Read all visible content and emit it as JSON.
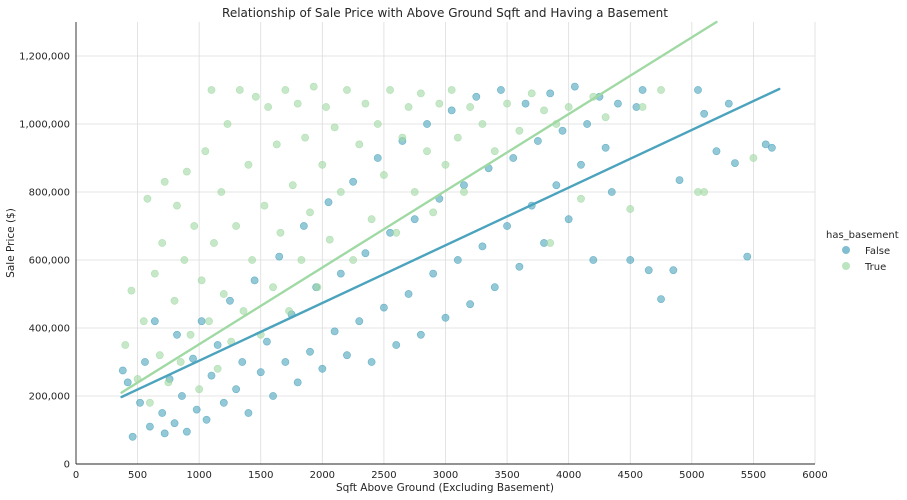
{
  "chart_data": {
    "type": "scatter",
    "title": "Relationship of Sale Price with Above Ground Sqft and Having a Basement",
    "xlabel": "Sqft Above Ground (Excluding Basement)",
    "ylabel": "Sale Price ($)",
    "xlim": [
      0,
      6000
    ],
    "ylim": [
      0,
      1300000
    ],
    "x_ticks": [
      0,
      500,
      1000,
      1500,
      2000,
      2500,
      3000,
      3500,
      4000,
      4500,
      5000,
      5500,
      6000
    ],
    "y_ticks": [
      0,
      200000,
      400000,
      600000,
      800000,
      1000000,
      1200000
    ],
    "x_tick_labels": [
      "0",
      "500",
      "1000",
      "1500",
      "2000",
      "2500",
      "3000",
      "3500",
      "4000",
      "4500",
      "5000",
      "5500",
      "6000"
    ],
    "y_tick_labels": [
      "0",
      "200,000",
      "400,000",
      "600,000",
      "800,000",
      "1,000,000",
      "1,200,000"
    ],
    "grid": true,
    "legend": {
      "title": "has_basement",
      "placement": "right"
    },
    "series": [
      {
        "name": "False",
        "color": "#4ba3bd",
        "regression_line": {
          "x": [
            370,
            5710
          ],
          "y": [
            197000,
            1103000
          ]
        },
        "points": [
          [
            380,
            275000
          ],
          [
            420,
            240000
          ],
          [
            460,
            80000
          ],
          [
            520,
            180000
          ],
          [
            560,
            300000
          ],
          [
            600,
            110000
          ],
          [
            640,
            420000
          ],
          [
            700,
            150000
          ],
          [
            720,
            90000
          ],
          [
            760,
            250000
          ],
          [
            800,
            120000
          ],
          [
            820,
            380000
          ],
          [
            860,
            200000
          ],
          [
            900,
            95000
          ],
          [
            950,
            310000
          ],
          [
            980,
            160000
          ],
          [
            1020,
            420000
          ],
          [
            1060,
            130000
          ],
          [
            1100,
            260000
          ],
          [
            1150,
            350000
          ],
          [
            1200,
            180000
          ],
          [
            1250,
            480000
          ],
          [
            1300,
            220000
          ],
          [
            1350,
            300000
          ],
          [
            1400,
            150000
          ],
          [
            1450,
            540000
          ],
          [
            1500,
            270000
          ],
          [
            1550,
            360000
          ],
          [
            1600,
            200000
          ],
          [
            1650,
            610000
          ],
          [
            1700,
            300000
          ],
          [
            1750,
            440000
          ],
          [
            1800,
            240000
          ],
          [
            1850,
            700000
          ],
          [
            1900,
            330000
          ],
          [
            1950,
            520000
          ],
          [
            2000,
            280000
          ],
          [
            2050,
            770000
          ],
          [
            2100,
            390000
          ],
          [
            2150,
            560000
          ],
          [
            2200,
            320000
          ],
          [
            2250,
            830000
          ],
          [
            2300,
            420000
          ],
          [
            2350,
            620000
          ],
          [
            2400,
            300000
          ],
          [
            2450,
            900000
          ],
          [
            2500,
            460000
          ],
          [
            2550,
            680000
          ],
          [
            2600,
            350000
          ],
          [
            2650,
            950000
          ],
          [
            2700,
            500000
          ],
          [
            2750,
            720000
          ],
          [
            2800,
            380000
          ],
          [
            2850,
            1000000
          ],
          [
            2900,
            560000
          ],
          [
            2950,
            780000
          ],
          [
            3000,
            430000
          ],
          [
            3050,
            1040000
          ],
          [
            3100,
            600000
          ],
          [
            3150,
            820000
          ],
          [
            3200,
            470000
          ],
          [
            3250,
            1080000
          ],
          [
            3300,
            640000
          ],
          [
            3350,
            870000
          ],
          [
            3400,
            520000
          ],
          [
            3450,
            1100000
          ],
          [
            3500,
            700000
          ],
          [
            3550,
            900000
          ],
          [
            3600,
            580000
          ],
          [
            3650,
            1060000
          ],
          [
            3700,
            760000
          ],
          [
            3750,
            950000
          ],
          [
            3800,
            650000
          ],
          [
            3850,
            1090000
          ],
          [
            3900,
            820000
          ],
          [
            3950,
            980000
          ],
          [
            4000,
            720000
          ],
          [
            4050,
            1110000
          ],
          [
            4100,
            880000
          ],
          [
            4150,
            1000000
          ],
          [
            4200,
            600000
          ],
          [
            4250,
            1080000
          ],
          [
            4300,
            930000
          ],
          [
            4350,
            800000
          ],
          [
            4400,
            1060000
          ],
          [
            4500,
            600000
          ],
          [
            4550,
            1050000
          ],
          [
            4600,
            1100000
          ],
          [
            4650,
            570000
          ],
          [
            4750,
            485000
          ],
          [
            4850,
            570000
          ],
          [
            4900,
            835000
          ],
          [
            5050,
            1100000
          ],
          [
            5100,
            1030000
          ],
          [
            5200,
            920000
          ],
          [
            5300,
            1060000
          ],
          [
            5350,
            885000
          ],
          [
            5450,
            610000
          ],
          [
            5600,
            940000
          ],
          [
            5650,
            930000
          ]
        ]
      },
      {
        "name": "True",
        "color": "#a0d9a3",
        "regression_line": {
          "x": [
            370,
            5200
          ],
          "y": [
            210000,
            1300000
          ]
        },
        "points": [
          [
            400,
            350000
          ],
          [
            450,
            510000
          ],
          [
            500,
            250000
          ],
          [
            550,
            420000
          ],
          [
            580,
            780000
          ],
          [
            600,
            180000
          ],
          [
            640,
            560000
          ],
          [
            680,
            320000
          ],
          [
            700,
            650000
          ],
          [
            720,
            830000
          ],
          [
            750,
            240000
          ],
          [
            800,
            480000
          ],
          [
            820,
            760000
          ],
          [
            850,
            300000
          ],
          [
            880,
            600000
          ],
          [
            900,
            860000
          ],
          [
            930,
            380000
          ],
          [
            960,
            700000
          ],
          [
            1000,
            220000
          ],
          [
            1020,
            540000
          ],
          [
            1050,
            920000
          ],
          [
            1080,
            420000
          ],
          [
            1100,
            1100000
          ],
          [
            1120,
            650000
          ],
          [
            1150,
            280000
          ],
          [
            1180,
            800000
          ],
          [
            1200,
            500000
          ],
          [
            1230,
            1000000
          ],
          [
            1260,
            360000
          ],
          [
            1300,
            700000
          ],
          [
            1330,
            1100000
          ],
          [
            1360,
            450000
          ],
          [
            1400,
            880000
          ],
          [
            1430,
            600000
          ],
          [
            1460,
            1080000
          ],
          [
            1500,
            380000
          ],
          [
            1530,
            760000
          ],
          [
            1560,
            1050000
          ],
          [
            1600,
            520000
          ],
          [
            1630,
            940000
          ],
          [
            1660,
            680000
          ],
          [
            1700,
            1100000
          ],
          [
            1730,
            450000
          ],
          [
            1760,
            820000
          ],
          [
            1800,
            1060000
          ],
          [
            1830,
            600000
          ],
          [
            1860,
            960000
          ],
          [
            1900,
            740000
          ],
          [
            1930,
            1110000
          ],
          [
            1960,
            520000
          ],
          [
            2000,
            880000
          ],
          [
            2030,
            1050000
          ],
          [
            2060,
            660000
          ],
          [
            2100,
            990000
          ],
          [
            2150,
            800000
          ],
          [
            2200,
            1100000
          ],
          [
            2250,
            600000
          ],
          [
            2300,
            940000
          ],
          [
            2350,
            1060000
          ],
          [
            2400,
            720000
          ],
          [
            2450,
            1000000
          ],
          [
            2500,
            850000
          ],
          [
            2550,
            1100000
          ],
          [
            2600,
            680000
          ],
          [
            2650,
            960000
          ],
          [
            2700,
            1050000
          ],
          [
            2750,
            800000
          ],
          [
            2800,
            1090000
          ],
          [
            2850,
            920000
          ],
          [
            2900,
            740000
          ],
          [
            2950,
            1060000
          ],
          [
            3000,
            880000
          ],
          [
            3050,
            1100000
          ],
          [
            3100,
            960000
          ],
          [
            3150,
            800000
          ],
          [
            3200,
            1050000
          ],
          [
            3300,
            1000000
          ],
          [
            3400,
            920000
          ],
          [
            3500,
            1060000
          ],
          [
            3600,
            980000
          ],
          [
            3700,
            1090000
          ],
          [
            3800,
            1040000
          ],
          [
            3850,
            650000
          ],
          [
            3900,
            1000000
          ],
          [
            4000,
            1050000
          ],
          [
            4100,
            780000
          ],
          [
            4200,
            1080000
          ],
          [
            4300,
            1020000
          ],
          [
            4500,
            750000
          ],
          [
            4600,
            1050000
          ],
          [
            4750,
            1100000
          ],
          [
            5050,
            800000
          ],
          [
            5100,
            800000
          ],
          [
            5500,
            900000
          ]
        ]
      }
    ]
  }
}
